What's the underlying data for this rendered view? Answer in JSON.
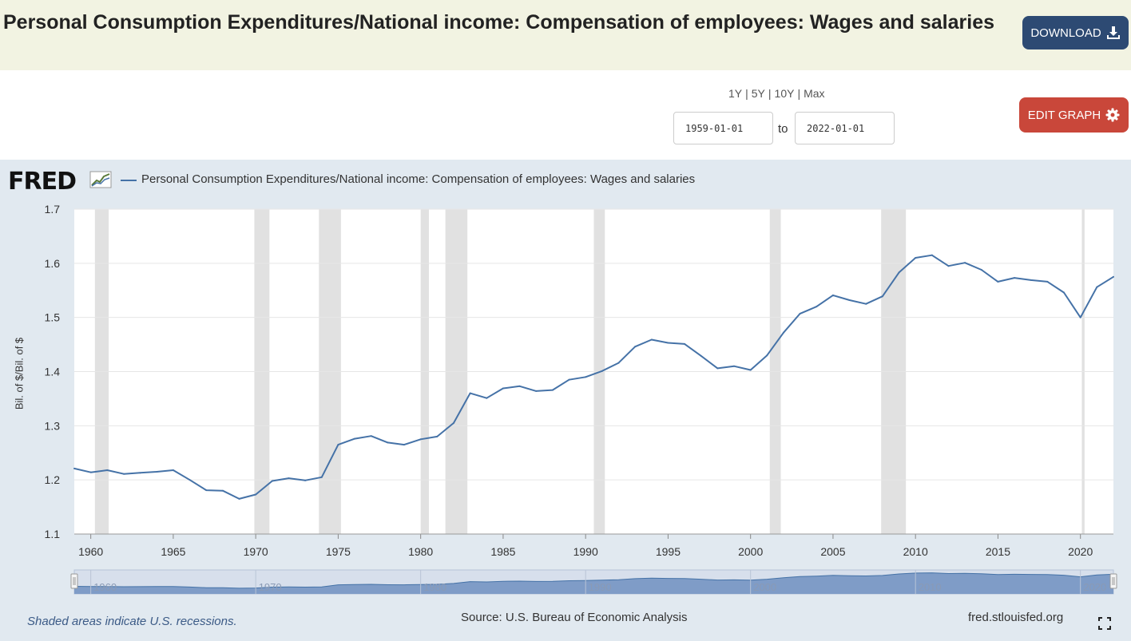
{
  "header": {
    "title": "Personal Consumption Expenditures/National income: Compensation of employees: Wages and salaries",
    "download_label": "DOWNLOAD",
    "download_icon": "download-icon"
  },
  "controls": {
    "range_links": [
      "1Y",
      "5Y",
      "10Y",
      "Max"
    ],
    "start_date": "1959-01-01",
    "to_label": "to",
    "end_date": "2022-01-01",
    "edit_label": "EDIT GRAPH",
    "edit_icon": "gear-icon"
  },
  "chart_panel": {
    "logo": "FRED",
    "legend": "Personal Consumption Expenditures/National income: Compensation of employees: Wages and salaries",
    "recession_note": "Shaded areas indicate U.S. recessions.",
    "source": "Source: U.S. Bureau of Economic Analysis",
    "site": "fred.stlouisfed.org"
  },
  "chart_data": {
    "type": "line",
    "title": "",
    "xlabel": "",
    "ylabel": "Bil. of $/Bil. of $",
    "ylim": [
      1.1,
      1.7
    ],
    "yticks": [
      "1.1",
      "1.2",
      "1.3",
      "1.4",
      "1.5",
      "1.6",
      "1.7"
    ],
    "xticks": [
      "1960",
      "1965",
      "1970",
      "1975",
      "1980",
      "1985",
      "1990",
      "1995",
      "2000",
      "2005",
      "2010",
      "2015",
      "2020"
    ],
    "navigator_ticks": [
      "1960",
      "1970",
      "1980",
      "1990",
      "2000",
      "2010",
      "2020"
    ],
    "grid": true,
    "series": [
      {
        "name": "Personal Consumption Expenditures/National income: Compensation of employees: Wages and salaries",
        "color": "#4572a7",
        "x": [
          "1959-01-01",
          "1960-01-01",
          "1961-01-01",
          "1962-01-01",
          "1963-01-01",
          "1964-01-01",
          "1965-01-01",
          "1966-01-01",
          "1967-01-01",
          "1968-01-01",
          "1969-01-01",
          "1970-01-01",
          "1971-01-01",
          "1972-01-01",
          "1973-01-01",
          "1974-01-01",
          "1975-01-01",
          "1976-01-01",
          "1977-01-01",
          "1978-01-01",
          "1979-01-01",
          "1980-01-01",
          "1981-01-01",
          "1982-01-01",
          "1983-01-01",
          "1984-01-01",
          "1985-01-01",
          "1986-01-01",
          "1987-01-01",
          "1988-01-01",
          "1989-01-01",
          "1990-01-01",
          "1991-01-01",
          "1992-01-01",
          "1993-01-01",
          "1994-01-01",
          "1995-01-01",
          "1996-01-01",
          "1997-01-01",
          "1998-01-01",
          "1999-01-01",
          "2000-01-01",
          "2001-01-01",
          "2002-01-01",
          "2003-01-01",
          "2004-01-01",
          "2005-01-01",
          "2006-01-01",
          "2007-01-01",
          "2008-01-01",
          "2009-01-01",
          "2010-01-01",
          "2011-01-01",
          "2012-01-01",
          "2013-01-01",
          "2014-01-01",
          "2015-01-01",
          "2016-01-01",
          "2017-01-01",
          "2018-01-01",
          "2019-01-01",
          "2020-01-01",
          "2021-01-01",
          "2022-01-01"
        ],
        "values": [
          1.221,
          1.214,
          1.218,
          1.211,
          1.213,
          1.215,
          1.218,
          1.2,
          1.181,
          1.18,
          1.165,
          1.173,
          1.198,
          1.203,
          1.199,
          1.205,
          1.265,
          1.276,
          1.281,
          1.269,
          1.265,
          1.275,
          1.28,
          1.305,
          1.36,
          1.351,
          1.369,
          1.373,
          1.364,
          1.366,
          1.385,
          1.39,
          1.401,
          1.416,
          1.446,
          1.459,
          1.453,
          1.451,
          1.429,
          1.406,
          1.41,
          1.403,
          1.43,
          1.472,
          1.507,
          1.52,
          1.541,
          1.532,
          1.525,
          1.539,
          1.583,
          1.61,
          1.615,
          1.595,
          1.601,
          1.588,
          1.566,
          1.573,
          1.569,
          1.566,
          1.546,
          1.5,
          1.556,
          1.575
        ]
      }
    ],
    "recessions": [
      [
        "1960-04-01",
        "1961-02-01"
      ],
      [
        "1969-12-01",
        "1970-11-01"
      ],
      [
        "1973-11-01",
        "1975-03-01"
      ],
      [
        "1980-01-01",
        "1980-07-01"
      ],
      [
        "1981-07-01",
        "1982-11-01"
      ],
      [
        "1990-07-01",
        "1991-03-01"
      ],
      [
        "2001-03-01",
        "2001-11-01"
      ],
      [
        "2007-12-01",
        "2009-06-01"
      ],
      [
        "2020-02-01",
        "2020-04-01"
      ]
    ]
  }
}
